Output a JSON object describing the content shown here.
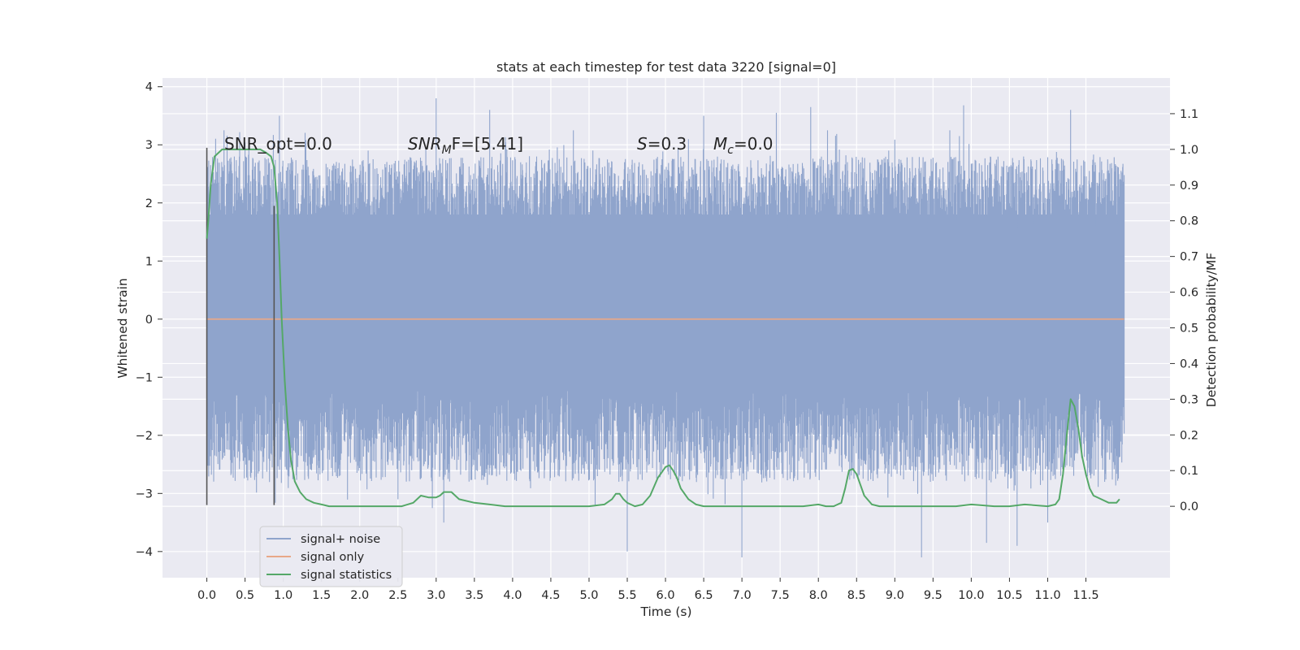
{
  "chart_data": {
    "type": "line",
    "title": "stats at each timestep for test data 3220 [signal=0]",
    "xlabel": "Time (s)",
    "ylabel_left": "Whitened strain",
    "ylabel_right": "Detection probability/MF",
    "xlim": [
      -0.58,
      12.6
    ],
    "ylim_left": [
      -4.45,
      4.15
    ],
    "ylim_right": [
      -0.2,
      1.2
    ],
    "x_ticks": [
      "0.0",
      "0.5",
      "1.0",
      "1.5",
      "2.0",
      "2.5",
      "3.0",
      "3.5",
      "4.0",
      "4.5",
      "5.0",
      "5.5",
      "6.0",
      "6.5",
      "7.0",
      "7.5",
      "8.0",
      "8.5",
      "9.0",
      "9.5",
      "10.0",
      "10.5",
      "11.0",
      "11.5"
    ],
    "y_ticks_left": [
      "4",
      "3",
      "2",
      "1",
      "0",
      "−1",
      "−2",
      "−3",
      "−4"
    ],
    "y_ticks_right": [
      "1.1",
      "1.0",
      "0.9",
      "0.8",
      "0.7",
      "0.6",
      "0.5",
      "0.4",
      "0.3",
      "0.2",
      "0.1",
      "0.0"
    ],
    "grid": true,
    "legend_placement": "lower-left",
    "annotations": {
      "snr_opt": "SNR_opt=0.0",
      "snr_mf_main": "SNR",
      "snr_mf_sub": "M",
      "snr_mf_rest": "F=[5.41]",
      "s_main": "S",
      "s_rest": "=0.3",
      "mc_main": "M",
      "mc_sub": "c",
      "mc_rest": "=0.0"
    },
    "series": [
      {
        "name": "signal+ noise",
        "color": "#8fa4cc",
        "envelope": {
          "core_band": [
            -1.1,
            1.8
          ],
          "typical_peaks": [
            -3.0,
            3.0
          ],
          "spikes": [
            {
              "x": 3.0,
              "y": 3.8
            },
            {
              "x": 0.95,
              "y": 3.5
            },
            {
              "x": 3.7,
              "y": 3.6
            },
            {
              "x": 6.5,
              "y": 3.5
            },
            {
              "x": 7.45,
              "y": 3.55
            },
            {
              "x": 7.9,
              "y": 3.65
            },
            {
              "x": 9.9,
              "y": 3.68
            },
            {
              "x": 11.3,
              "y": 3.6
            },
            {
              "x": 5.5,
              "y": -4.0
            },
            {
              "x": 7.0,
              "y": -4.1
            },
            {
              "x": 9.35,
              "y": -4.1
            },
            {
              "x": 10.2,
              "y": -3.85
            },
            {
              "x": 10.6,
              "y": -3.9
            },
            {
              "x": 11.0,
              "y": -3.5
            },
            {
              "x": 3.1,
              "y": -3.5
            },
            {
              "x": 2.95,
              "y": -3.25
            },
            {
              "x": 2.5,
              "y": -3.1
            }
          ]
        }
      },
      {
        "name": "signal only",
        "color": "#e8a888",
        "x": [
          0.0,
          12.0
        ],
        "y": [
          0.0,
          0.0
        ]
      },
      {
        "name": "signal statistics",
        "color": "#55a868",
        "axis": "right",
        "x": [
          0.0,
          0.02,
          0.05,
          0.1,
          0.15,
          0.2,
          0.3,
          0.4,
          0.5,
          0.6,
          0.7,
          0.78,
          0.84,
          0.88,
          0.92,
          0.95,
          0.98,
          1.02,
          1.06,
          1.1,
          1.15,
          1.22,
          1.3,
          1.4,
          1.5,
          1.6,
          1.75,
          2.0,
          2.3,
          2.55,
          2.7,
          2.8,
          2.9,
          3.0,
          3.05,
          3.1,
          3.2,
          3.3,
          3.5,
          3.7,
          3.9,
          4.2,
          4.6,
          5.0,
          5.2,
          5.3,
          5.35,
          5.4,
          5.45,
          5.5,
          5.6,
          5.7,
          5.8,
          5.9,
          6.0,
          6.05,
          6.1,
          6.15,
          6.2,
          6.3,
          6.4,
          6.5,
          6.7,
          7.0,
          7.5,
          7.8,
          8.0,
          8.1,
          8.2,
          8.3,
          8.35,
          8.4,
          8.45,
          8.5,
          8.55,
          8.6,
          8.7,
          8.8,
          9.0,
          9.5,
          9.8,
          10.0,
          10.3,
          10.5,
          10.7,
          11.0,
          11.1,
          11.15,
          11.2,
          11.25,
          11.3,
          11.35,
          11.4,
          11.45,
          11.5,
          11.55,
          11.6,
          11.7,
          11.8,
          11.9,
          11.94
        ],
        "y": [
          0.75,
          0.8,
          0.9,
          0.98,
          0.99,
          1.0,
          1.0,
          1.0,
          1.0,
          1.0,
          1.0,
          0.99,
          0.98,
          0.95,
          0.85,
          0.7,
          0.52,
          0.35,
          0.22,
          0.13,
          0.07,
          0.04,
          0.02,
          0.01,
          0.005,
          0.0,
          0.0,
          0.0,
          0.0,
          0.0,
          0.01,
          0.03,
          0.025,
          0.025,
          0.03,
          0.04,
          0.04,
          0.02,
          0.01,
          0.005,
          0.0,
          0.0,
          0.0,
          0.0,
          0.005,
          0.02,
          0.035,
          0.035,
          0.02,
          0.01,
          0.0,
          0.005,
          0.03,
          0.08,
          0.11,
          0.115,
          0.1,
          0.08,
          0.05,
          0.02,
          0.005,
          0.0,
          0.0,
          0.0,
          0.0,
          0.0,
          0.005,
          0.0,
          0.0,
          0.01,
          0.05,
          0.1,
          0.105,
          0.09,
          0.06,
          0.03,
          0.005,
          0.0,
          0.0,
          0.0,
          0.0,
          0.005,
          0.0,
          0.0,
          0.005,
          0.0,
          0.005,
          0.02,
          0.09,
          0.2,
          0.3,
          0.28,
          0.22,
          0.14,
          0.09,
          0.05,
          0.03,
          0.02,
          0.01,
          0.01,
          0.02
        ]
      }
    ],
    "vertical_markers": [
      {
        "x": 0.0,
        "y0": -3.2,
        "y1": 2.95,
        "color": "#555555"
      },
      {
        "x": 0.88,
        "y0": -3.2,
        "y1": 1.95,
        "color": "#555555"
      }
    ]
  }
}
